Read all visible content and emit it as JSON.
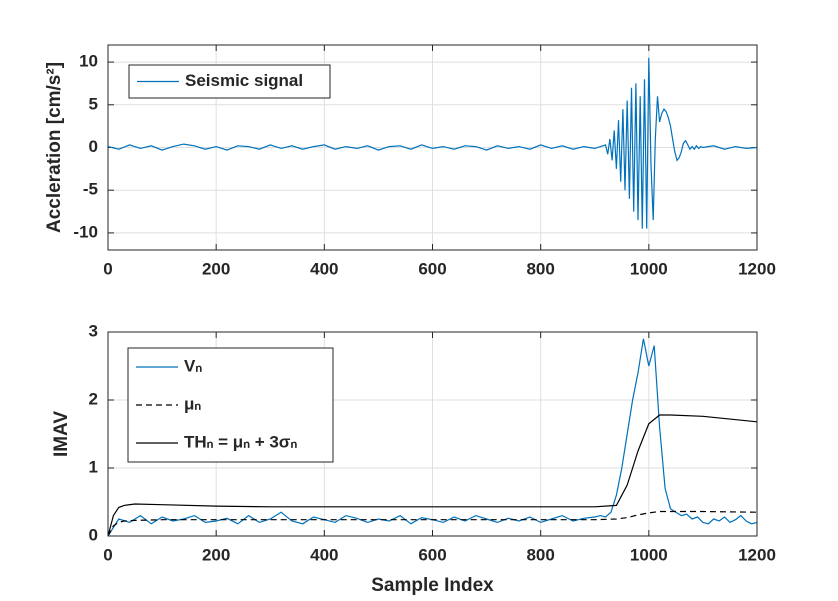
{
  "chart_data": [
    {
      "type": "line",
      "ylabel": "Accleration [cm/s²]",
      "xlim": [
        0,
        1200
      ],
      "xticks": [
        0,
        200,
        400,
        600,
        800,
        1000,
        1200
      ],
      "ylim": [
        -12,
        12
      ],
      "yticks": [
        -10,
        -5,
        0,
        5,
        10
      ],
      "grid": true,
      "legend": "upper left",
      "series": [
        {
          "name": "Seismic signal",
          "color": "#0072bd",
          "style": "solid",
          "x": [
            0,
            20,
            40,
            60,
            80,
            100,
            120,
            140,
            160,
            180,
            200,
            220,
            240,
            260,
            280,
            300,
            320,
            340,
            360,
            380,
            400,
            420,
            440,
            460,
            480,
            500,
            520,
            540,
            560,
            580,
            600,
            620,
            640,
            660,
            680,
            700,
            720,
            740,
            760,
            780,
            800,
            820,
            840,
            860,
            880,
            900,
            920,
            924,
            928,
            932,
            936,
            940,
            944,
            948,
            952,
            956,
            960,
            964,
            968,
            972,
            976,
            980,
            984,
            988,
            992,
            996,
            1000,
            1004,
            1008,
            1012,
            1016,
            1020,
            1024,
            1028,
            1032,
            1036,
            1040,
            1044,
            1048,
            1052,
            1056,
            1060,
            1064,
            1068,
            1072,
            1076,
            1080,
            1084,
            1088,
            1092,
            1096,
            1100,
            1120,
            1140,
            1160,
            1180,
            1200
          ],
          "values": [
            0.1,
            -0.2,
            0.3,
            -0.1,
            0.2,
            -0.3,
            0.1,
            0.4,
            0.2,
            -0.2,
            0.1,
            -0.3,
            0.2,
            0.1,
            -0.2,
            0.3,
            -0.1,
            0.2,
            -0.2,
            0.1,
            0.3,
            -0.2,
            0.1,
            -0.1,
            0.2,
            -0.3,
            0.1,
            0.2,
            -0.2,
            0.3,
            -0.1,
            0.1,
            -0.2,
            0.2,
            0.1,
            -0.3,
            0.2,
            -0.1,
            0.1,
            -0.2,
            0.3,
            -0.1,
            0.2,
            -0.2,
            0.1,
            -0.1,
            0.3,
            -0.8,
            1.0,
            -1.5,
            2,
            -2.5,
            3.2,
            -4,
            4.5,
            -5,
            5.5,
            -6,
            7,
            -7.5,
            7.5,
            -8.5,
            6,
            -9.5,
            8,
            -9.5,
            10.5,
            -2,
            -8.5,
            1,
            6,
            3,
            4,
            4.5,
            4.2,
            3.5,
            2.5,
            1,
            -0.5,
            -1.5,
            -1.2,
            -0.5,
            0.5,
            0.8,
            0.3,
            -0.2,
            0.1,
            -0.2,
            0.2,
            -0.1,
            0.1,
            0,
            0.2,
            -0.2,
            0.1,
            -0.1,
            0
          ]
        }
      ]
    },
    {
      "type": "line",
      "xlabel": "Sample Index",
      "ylabel": "IMAV",
      "xlim": [
        0,
        1200
      ],
      "xticks": [
        0,
        200,
        400,
        600,
        800,
        1000,
        1200
      ],
      "ylim": [
        0,
        3
      ],
      "yticks": [
        0,
        1,
        2,
        3
      ],
      "grid": true,
      "legend": "upper left",
      "series": [
        {
          "name": "Vₙ",
          "color": "#0072bd",
          "style": "solid",
          "x": [
            0,
            20,
            40,
            60,
            80,
            100,
            120,
            140,
            160,
            180,
            200,
            220,
            240,
            260,
            280,
            300,
            320,
            340,
            360,
            380,
            400,
            420,
            440,
            460,
            480,
            500,
            520,
            540,
            560,
            580,
            600,
            620,
            640,
            660,
            680,
            700,
            720,
            740,
            760,
            780,
            800,
            820,
            840,
            860,
            880,
            900,
            910,
            920,
            930,
            940,
            950,
            960,
            970,
            980,
            990,
            1000,
            1010,
            1020,
            1030,
            1040,
            1050,
            1060,
            1070,
            1080,
            1090,
            1100,
            1110,
            1120,
            1130,
            1140,
            1150,
            1160,
            1170,
            1180,
            1190,
            1200
          ],
          "values": [
            0,
            0.25,
            0.2,
            0.3,
            0.18,
            0.28,
            0.22,
            0.25,
            0.3,
            0.2,
            0.22,
            0.26,
            0.18,
            0.3,
            0.2,
            0.25,
            0.35,
            0.22,
            0.18,
            0.28,
            0.24,
            0.2,
            0.3,
            0.26,
            0.2,
            0.25,
            0.22,
            0.3,
            0.18,
            0.27,
            0.24,
            0.2,
            0.28,
            0.22,
            0.3,
            0.25,
            0.2,
            0.26,
            0.22,
            0.28,
            0.2,
            0.25,
            0.3,
            0.22,
            0.26,
            0.28,
            0.3,
            0.28,
            0.35,
            0.6,
            1.0,
            1.5,
            2.0,
            2.4,
            2.9,
            2.5,
            2.8,
            1.6,
            0.7,
            0.4,
            0.35,
            0.3,
            0.32,
            0.25,
            0.28,
            0.2,
            0.18,
            0.25,
            0.22,
            0.28,
            0.2,
            0.24,
            0.3,
            0.22,
            0.18,
            0.2
          ]
        },
        {
          "name": "μₙ",
          "color": "#000000",
          "style": "dashed",
          "x": [
            0,
            10,
            20,
            30,
            50,
            100,
            200,
            300,
            400,
            500,
            600,
            700,
            800,
            900,
            940,
            960,
            980,
            1000,
            1020,
            1040,
            1100,
            1200
          ],
          "values": [
            0,
            0.15,
            0.2,
            0.22,
            0.23,
            0.24,
            0.24,
            0.24,
            0.24,
            0.24,
            0.24,
            0.24,
            0.24,
            0.24,
            0.25,
            0.27,
            0.31,
            0.34,
            0.36,
            0.36,
            0.36,
            0.35
          ]
        },
        {
          "name": "THₙ = μₙ + 3σₙ",
          "color": "#000000",
          "style": "solid",
          "x": [
            0,
            10,
            20,
            30,
            50,
            100,
            200,
            300,
            400,
            500,
            600,
            700,
            800,
            900,
            940,
            960,
            980,
            1000,
            1020,
            1040,
            1100,
            1200
          ],
          "values": [
            0,
            0.3,
            0.42,
            0.45,
            0.47,
            0.46,
            0.44,
            0.43,
            0.43,
            0.43,
            0.43,
            0.43,
            0.43,
            0.43,
            0.45,
            0.75,
            1.25,
            1.65,
            1.78,
            1.78,
            1.76,
            1.68
          ]
        }
      ]
    }
  ]
}
